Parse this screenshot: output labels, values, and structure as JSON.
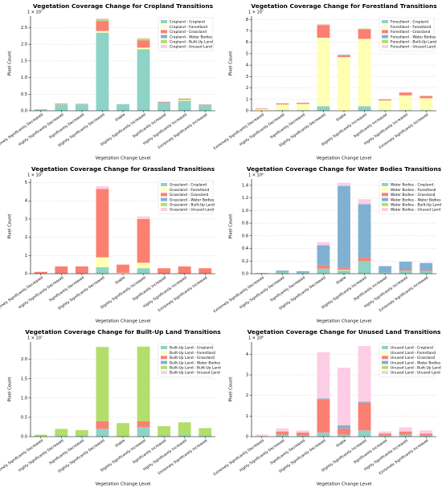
{
  "chart_data": [
    {
      "type": "bar",
      "stacked": true,
      "title": "Vegetation Coverage Change for Cropland Transitions",
      "xlabel": "Vegetation Change Level",
      "ylabel": "Pixel Count",
      "offset_text": "1 × 10⁷",
      "legend": "upper right",
      "categories": [
        "Extremely Significantly Decreased",
        "Highly Significantly Decreased",
        "Significantly Decreased",
        "Slightly Significantly Decreased",
        "Stable",
        "Slightly Significantly Increased",
        "Significantly Increased",
        "Highly Significantly Increased",
        "Extremely Significantly Increased"
      ],
      "ylim": [
        0,
        2.85
      ],
      "yticks": [
        {
          "value": 0,
          "label": "0.0"
        },
        {
          "value": 0.5,
          "label": "0.5"
        },
        {
          "value": 1,
          "label": "1.0"
        },
        {
          "value": 1.5,
          "label": "1.5"
        },
        {
          "value": 2,
          "label": "2.0"
        },
        {
          "value": 2.5,
          "label": "2.5"
        }
      ],
      "series": [
        {
          "name": "Cropland - Cropland",
          "color": "#8dd3c7",
          "values": [
            0.04,
            0.19,
            0.2,
            2.35,
            0.2,
            1.85,
            0.25,
            0.3,
            0.18
          ]
        },
        {
          "name": "Cropland - Forestland",
          "color": "#ffffb3",
          "values": [
            0.005,
            0.01,
            0.01,
            0.05,
            0,
            0.05,
            0,
            0.03,
            0
          ]
        },
        {
          "name": "Cropland - Grassland",
          "color": "#fb8072",
          "values": [
            0.005,
            0.02,
            0.01,
            0.3,
            0,
            0.22,
            0.02,
            0.03,
            0.01
          ]
        },
        {
          "name": "Cropland - Water Bodies",
          "color": "#80b1d3",
          "values": [
            0,
            0,
            0,
            0.01,
            0,
            0,
            0,
            0,
            0
          ]
        },
        {
          "name": "Cropland - Built-Up Land",
          "color": "#b3de69",
          "values": [
            0,
            0,
            0,
            0.05,
            0,
            0.05,
            0,
            0.01,
            0
          ]
        },
        {
          "name": "Cropland - Unused Land",
          "color": "#fccde5",
          "values": [
            0,
            0,
            0,
            0.02,
            0,
            0.02,
            0,
            0,
            0
          ]
        }
      ]
    },
    {
      "type": "bar",
      "stacked": true,
      "title": "Vegetation Coverage Change for Forestland Transitions",
      "xlabel": "Vegetation Change Level",
      "ylabel": "Pixel Count",
      "offset_text": "1 × 10⁷",
      "legend": "upper right",
      "categories": [
        "Extremely Significantly Decreased",
        "Highly Significantly Decreased",
        "Significantly Decreased",
        "Slightly Significantly Decreased",
        "Stable",
        "Slightly Significantly Increased",
        "Significantly Increased",
        "Highly Significantly Increased",
        "Extremely Significantly Increased"
      ],
      "ylim": [
        0,
        8.3
      ],
      "yticks": [
        0,
        1,
        2,
        3,
        4,
        5,
        6,
        7,
        8
      ],
      "series": [
        {
          "name": "Forestland - Cropland",
          "color": "#8dd3c7",
          "values": [
            0,
            0.05,
            0.05,
            0.4,
            0,
            0.4,
            0.05,
            0.05,
            0.05
          ]
        },
        {
          "name": "Forestland - Forestland",
          "color": "#ffffb3",
          "values": [
            0.15,
            0.5,
            0.55,
            6.0,
            4.7,
            5.9,
            0.85,
            1.3,
            1.05
          ]
        },
        {
          "name": "Forestland - Grassland",
          "color": "#fb8072",
          "values": [
            0.05,
            0.1,
            0.1,
            1.1,
            0.15,
            0.85,
            0.1,
            0.25,
            0.2
          ]
        },
        {
          "name": "Forestland - Water Bodies",
          "color": "#80b1d3",
          "values": [
            0,
            0,
            0,
            0,
            0.05,
            0,
            0,
            0,
            0
          ]
        },
        {
          "name": "Forestland - Built-Up Land",
          "color": "#b3de69",
          "values": [
            0,
            0,
            0,
            0.05,
            0,
            0.05,
            0,
            0,
            0
          ]
        },
        {
          "name": "Forestland - Unused Land",
          "color": "#fccde5",
          "values": [
            0,
            0,
            0,
            0.05,
            0,
            0,
            0,
            0,
            0
          ]
        }
      ]
    },
    {
      "type": "bar",
      "stacked": true,
      "title": "Vegetation Coverage Change for Grassland Transitions",
      "xlabel": "Vegetation Change Level",
      "ylabel": "Pixel Count",
      "offset_text": "1 × 10⁷",
      "legend": "upper right",
      "categories": [
        "Extremely Significantly Decreased",
        "Highly Significantly Decreased",
        "Significantly Decreased",
        "Slightly Significantly Decreased",
        "Stable",
        "Slightly Significantly Increased",
        "Significantly Increased",
        "Highly Significantly Increased",
        "Extremely Significantly Increased"
      ],
      "ylim": [
        0,
        5.2
      ],
      "yticks": [
        0,
        1,
        2,
        3,
        4,
        5
      ],
      "series": [
        {
          "name": "Grassland - Cropland",
          "color": "#8dd3c7",
          "values": [
            0,
            0,
            0,
            0.35,
            0,
            0.3,
            0,
            0,
            0
          ]
        },
        {
          "name": "Grassland - Forestland",
          "color": "#ffffb3",
          "values": [
            0,
            0,
            0,
            0.55,
            0.05,
            0.3,
            0,
            0,
            0
          ]
        },
        {
          "name": "Grassland - Grassland",
          "color": "#fb8072",
          "values": [
            0.1,
            0.4,
            0.4,
            3.75,
            0.45,
            2.4,
            0.3,
            0.4,
            0.3
          ]
        },
        {
          "name": "Grassland - Water Bodies",
          "color": "#80b1d3",
          "values": [
            0,
            0,
            0,
            0,
            0,
            0,
            0,
            0,
            0
          ]
        },
        {
          "name": "Grassland - Built-Up Land",
          "color": "#b3de69",
          "values": [
            0,
            0,
            0,
            0,
            0,
            0,
            0,
            0,
            0
          ]
        },
        {
          "name": "Grassland - Unused Land",
          "color": "#fccde5",
          "values": [
            0,
            0,
            0,
            0.15,
            0,
            0.15,
            0,
            0,
            0
          ]
        }
      ]
    },
    {
      "type": "bar",
      "stacked": true,
      "title": "Vegetation Coverage Change for Water Bodies Transitions",
      "xlabel": "Vegetation Change Level",
      "ylabel": "Pixel Count",
      "offset_text": "1 × 10⁶",
      "legend": "upper right",
      "categories": [
        "Extremely Significantly Decreased",
        "Highly Significantly Decreased",
        "Significantly Decreased",
        "Slightly Significantly Decreased",
        "Stable",
        "Slightly Significantly Increased",
        "Significantly Increased",
        "Highly Significantly Increased",
        "Extremely Significantly Increased"
      ],
      "ylim": [
        0,
        1.5
      ],
      "yticks": [
        {
          "value": 0,
          "label": "0.0"
        },
        {
          "value": 0.2,
          "label": "0.2"
        },
        {
          "value": 0.4,
          "label": "0.4"
        },
        {
          "value": 0.6,
          "label": "0.6"
        },
        {
          "value": 0.8,
          "label": "0.8"
        },
        {
          "value": 1,
          "label": "1.0"
        },
        {
          "value": 1.2,
          "label": "1.2"
        },
        {
          "value": 1.4,
          "label": "1.4"
        }
      ],
      "series": [
        {
          "name": "Water Bodies - Cropland",
          "color": "#8dd3c7",
          "values": [
            0.005,
            0.03,
            0.02,
            0.08,
            0.05,
            0.2,
            0.02,
            0.05,
            0.04
          ]
        },
        {
          "name": "Water Bodies - Forestland",
          "color": "#ffffb3",
          "values": [
            0,
            0,
            0,
            0,
            0.01,
            0,
            0,
            0,
            0
          ]
        },
        {
          "name": "Water Bodies - Grassland",
          "color": "#fb8072",
          "values": [
            0,
            0,
            0,
            0.05,
            0.03,
            0.05,
            0,
            0.02,
            0.01
          ]
        },
        {
          "name": "Water Bodies - Water Bodies",
          "color": "#80b1d3",
          "values": [
            0.005,
            0.02,
            0.02,
            0.32,
            1.3,
            0.85,
            0.1,
            0.12,
            0.12
          ]
        },
        {
          "name": "Water Bodies - Built-Up Land",
          "color": "#b3de69",
          "values": [
            0,
            0,
            0,
            0,
            0,
            0,
            0,
            0,
            0
          ]
        },
        {
          "name": "Water Bodies - Unused Land",
          "color": "#fccde5",
          "values": [
            0,
            0,
            0,
            0.05,
            0.05,
            0.08,
            0,
            0,
            0
          ]
        }
      ]
    },
    {
      "type": "bar",
      "stacked": true,
      "title": "Vegetation Coverage Change for Built-Up Land Transitions",
      "xlabel": "Vegetation Change Level",
      "ylabel": "Pixel Count",
      "offset_text": "1 × 10⁷",
      "legend": "upper right",
      "categories": [
        "Extremely Significantly Decreased",
        "Highly Significantly Decreased",
        "Significantly Decreased",
        "Slightly Significantly Decreased",
        "Stable",
        "Slightly Significantly Increased",
        "Significantly Increased",
        "Highly Significantly Increased",
        "Extremely Significantly Increased"
      ],
      "ylim": [
        0,
        2.45
      ],
      "yticks": [
        {
          "value": 0,
          "label": "0.0"
        },
        {
          "value": 0.5,
          "label": "0.5"
        },
        {
          "value": 1,
          "label": "1.0"
        },
        {
          "value": 1.5,
          "label": "1.5"
        },
        {
          "value": 2,
          "label": "2.0"
        }
      ],
      "series": [
        {
          "name": "Built-Up Land - Cropland",
          "color": "#8dd3c7",
          "values": [
            0,
            0.02,
            0.02,
            0.2,
            0,
            0.25,
            0.02,
            0.05,
            0.02
          ]
        },
        {
          "name": "Built-Up Land - Forestland",
          "color": "#ffffb3",
          "values": [
            0,
            0,
            0,
            0,
            0,
            0,
            0,
            0,
            0
          ]
        },
        {
          "name": "Built-Up Land - Grassland",
          "color": "#fb8072",
          "values": [
            0,
            0,
            0,
            0.2,
            0,
            0.15,
            0,
            0,
            0
          ]
        },
        {
          "name": "Built-Up Land - Water Bodies",
          "color": "#80b1d3",
          "values": [
            0,
            0,
            0,
            0,
            0,
            0,
            0,
            0,
            0
          ]
        },
        {
          "name": "Built-Up Land - Built-Up Land",
          "color": "#b3de69",
          "values": [
            0.05,
            0.18,
            0.15,
            1.92,
            0.35,
            1.93,
            0.25,
            0.32,
            0.2
          ]
        },
        {
          "name": "Built-Up Land - Unused Land",
          "color": "#fccde5",
          "values": [
            0,
            0,
            0,
            0,
            0,
            0,
            0,
            0,
            0
          ]
        }
      ]
    },
    {
      "type": "bar",
      "stacked": true,
      "title": "Vegetation Coverage Change for Unused Land Transitions",
      "xlabel": "Vegetation Change Level",
      "ylabel": "Pixel Count",
      "offset_text": "1 × 10⁶",
      "legend": "upper right",
      "categories": [
        "Extremely Significantly Decreased",
        "Highly Significantly Decreased",
        "Significantly Decreased",
        "Slightly Significantly Decreased",
        "Stable",
        "Slightly Significantly Increased",
        "Significantly Increased",
        "Highly Significantly Increased",
        "Extremely Significantly Increased"
      ],
      "ylim": [
        0,
        4.6
      ],
      "yticks": [
        0,
        1,
        2,
        3,
        4
      ],
      "series": [
        {
          "name": "Unused Land - Cropland",
          "color": "#8dd3c7",
          "values": [
            0,
            0.1,
            0.05,
            0.2,
            0.1,
            0.3,
            0.05,
            0.1,
            0.05
          ]
        },
        {
          "name": "Unused Land - Forestland",
          "color": "#ffffb3",
          "values": [
            0,
            0,
            0,
            0,
            0,
            0,
            0,
            0,
            0
          ]
        },
        {
          "name": "Unused Land - Grassland",
          "color": "#fb8072",
          "values": [
            0,
            0.15,
            0.15,
            1.6,
            0.3,
            1.35,
            0.1,
            0.15,
            0.1
          ]
        },
        {
          "name": "Unused Land - Water Bodies",
          "color": "#80b1d3",
          "values": [
            0,
            0,
            0,
            0.05,
            0.15,
            0.05,
            0,
            0,
            0
          ]
        },
        {
          "name": "Unused Land - Built-Up Land",
          "color": "#b3de69",
          "values": [
            0,
            0,
            0,
            0,
            0,
            0,
            0,
            0,
            0
          ]
        },
        {
          "name": "Unused Land - Unused Land",
          "color": "#fccde5",
          "values": [
            0.1,
            0.15,
            0.1,
            2.25,
            2.8,
            2.7,
            0.1,
            0.2,
            0.15
          ]
        }
      ]
    }
  ]
}
